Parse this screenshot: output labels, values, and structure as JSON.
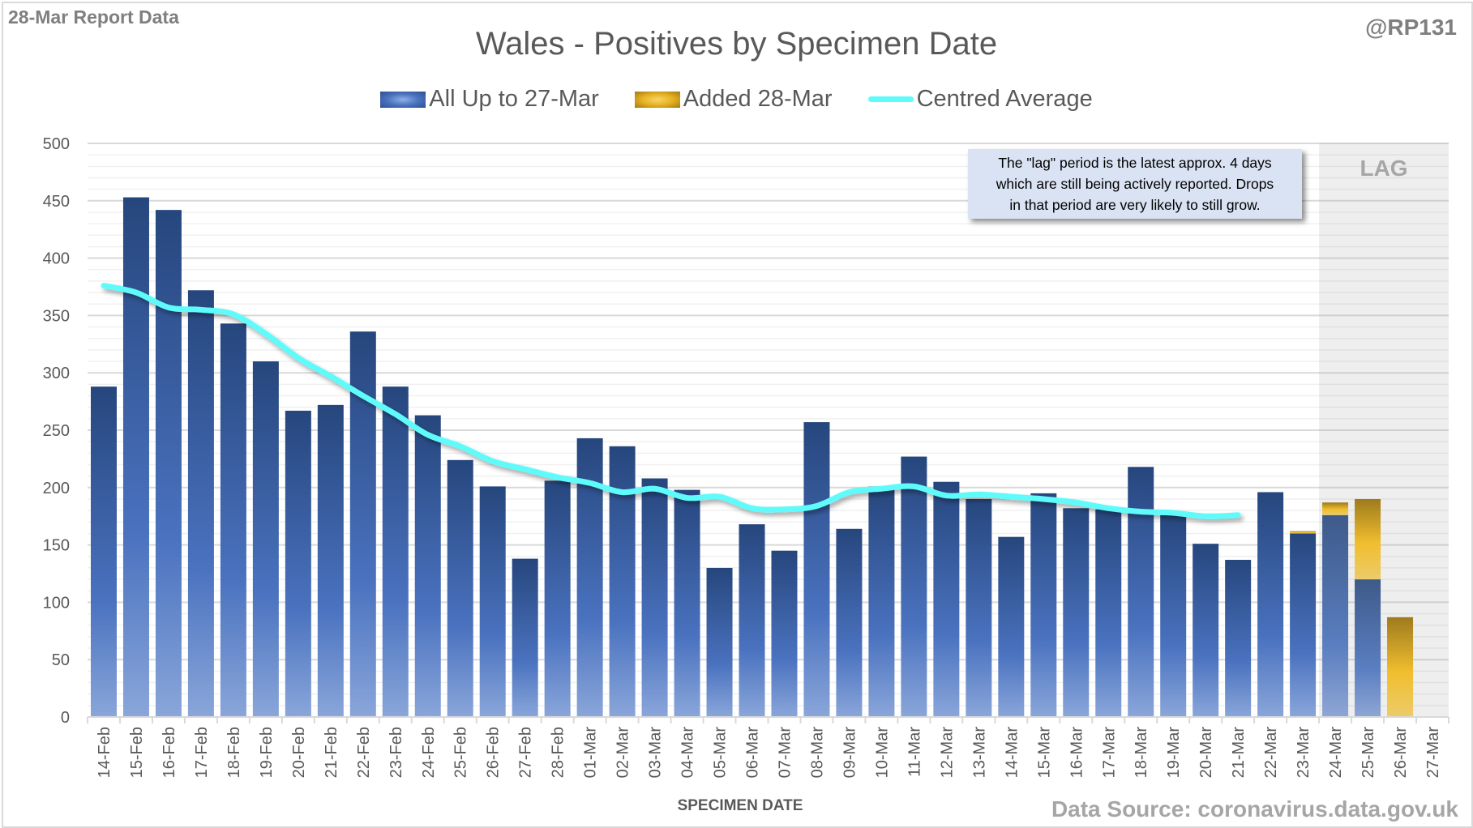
{
  "header": {
    "report_label": "28-Mar Report Data",
    "handle": "@RP131"
  },
  "legend": {
    "items": [
      {
        "label": "All Up to 27-Mar",
        "icon": "blue-gradient-swatch"
      },
      {
        "label": "Added 28-Mar",
        "icon": "gold-gradient-swatch"
      },
      {
        "label": "Centred Average",
        "icon": "cyan-line-swatch"
      }
    ]
  },
  "note": {
    "lines": [
      "The \"lag\" period is the latest approx. 4 days",
      "which are still being actively reported.  Drops",
      "in that period are very likely to still grow."
    ]
  },
  "lag_label": "LAG",
  "footer": {
    "source": "Data Source: coronavirus.data.gov.uk"
  },
  "colors": {
    "blue_dark": "#26467d",
    "blue_light": "#8aa6da",
    "gold_dark": "#9e7a14",
    "gold_light": "#f0c030",
    "average_line": "#5ffbfb",
    "lag_band": "#ececec"
  },
  "chart_data": {
    "type": "bar",
    "title": "Wales - Positives by Specimen Date",
    "xlabel": "SPECIMEN DATE",
    "ylabel": "",
    "ylim": [
      0,
      500
    ],
    "yticks": [
      0,
      50,
      100,
      150,
      200,
      250,
      300,
      350,
      400,
      450,
      500
    ],
    "grid": true,
    "legend_position": "top-center",
    "stacked": true,
    "lag_categories": [
      "24-Mar",
      "25-Mar",
      "26-Mar",
      "27-Mar"
    ],
    "categories": [
      "14-Feb",
      "15-Feb",
      "16-Feb",
      "17-Feb",
      "18-Feb",
      "19-Feb",
      "20-Feb",
      "21-Feb",
      "22-Feb",
      "23-Feb",
      "24-Feb",
      "25-Feb",
      "26-Feb",
      "27-Feb",
      "28-Feb",
      "01-Mar",
      "02-Mar",
      "03-Mar",
      "04-Mar",
      "05-Mar",
      "06-Mar",
      "07-Mar",
      "08-Mar",
      "09-Mar",
      "10-Mar",
      "11-Mar",
      "12-Mar",
      "13-Mar",
      "14-Mar",
      "15-Mar",
      "16-Mar",
      "17-Mar",
      "18-Mar",
      "19-Mar",
      "20-Mar",
      "21-Mar",
      "22-Mar",
      "23-Mar",
      "24-Mar",
      "25-Mar",
      "26-Mar",
      "27-Mar"
    ],
    "series": [
      {
        "name": "All Up to 27-Mar",
        "type": "bar",
        "values": [
          288,
          453,
          442,
          372,
          343,
          310,
          267,
          272,
          336,
          288,
          263,
          224,
          201,
          138,
          206,
          243,
          236,
          208,
          198,
          130,
          168,
          145,
          257,
          164,
          201,
          227,
          205,
          190,
          157,
          195,
          182,
          181,
          218,
          176,
          151,
          137,
          196,
          160,
          176,
          120,
          0,
          0
        ]
      },
      {
        "name": "Added 28-Mar",
        "type": "bar",
        "values": [
          0,
          0,
          0,
          0,
          0,
          0,
          0,
          0,
          0,
          0,
          0,
          0,
          0,
          0,
          0,
          0,
          0,
          0,
          0,
          0,
          0,
          0,
          0,
          0,
          0,
          0,
          0,
          0,
          0,
          0,
          0,
          0,
          0,
          0,
          0,
          0,
          0,
          2,
          11,
          70,
          87,
          0
        ]
      },
      {
        "name": "Centred Average",
        "type": "line",
        "values": [
          376,
          370,
          357,
          355,
          351,
          334,
          313,
          297,
          280,
          264,
          246,
          236,
          223,
          216,
          209,
          204,
          196,
          199,
          191,
          192,
          182,
          181,
          184,
          196,
          199,
          201,
          193,
          194,
          192,
          190,
          187,
          182,
          179,
          178,
          175,
          176,
          null,
          null,
          null,
          null,
          null,
          null
        ]
      }
    ]
  }
}
